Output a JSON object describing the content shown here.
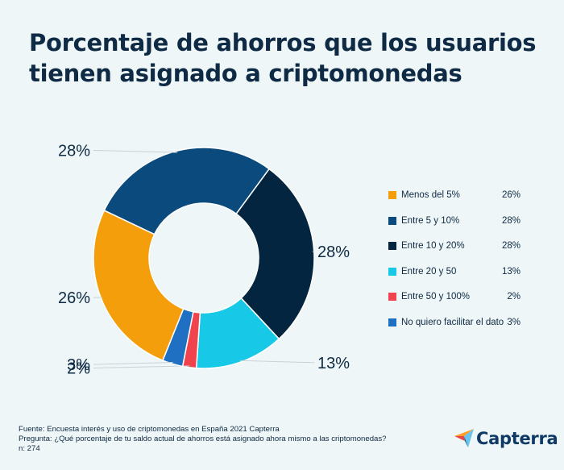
{
  "header": {
    "title_line1": "Porcentaje de ahorros que los usuarios",
    "title_line2": "tienen asignado a criptomonedas"
  },
  "chart_data": {
    "type": "donut",
    "slices": [
      {
        "label": "Menos del 5%",
        "value": 26,
        "display": "26%",
        "color": "#f59e0b"
      },
      {
        "label": "Entre 5 y 10%",
        "value": 28,
        "display": "28%",
        "color": "#0b4a7c"
      },
      {
        "label": "Entre 10 y 20%",
        "value": 28,
        "display": "28%",
        "color": "#04253f"
      },
      {
        "label": "Entre 20 y 50",
        "value": 13,
        "display": "13%",
        "color": "#17c9e6"
      },
      {
        "label": "Entre 50 y 100%",
        "value": 2,
        "display": "2%",
        "color": "#f0434d"
      },
      {
        "label": "No quiero facilitar el dato",
        "value": 3,
        "display": "3%",
        "color": "#1f6fc2"
      }
    ],
    "draw_order": [
      1,
      2,
      3,
      4,
      5,
      0
    ],
    "legend_position": "right"
  },
  "footer": {
    "source": "Fuente: Encuesta interés y uso de criptomonedas en España 2021 Capterra",
    "question": "Pregunta: ¿Qué porcentaje de tu saldo actual de ahorros está asignado ahora mismo a las criptomonedas?",
    "n": "n: 274"
  },
  "brand": {
    "name": "Capterra",
    "logo_icon": "capterra-arrow-icon"
  }
}
